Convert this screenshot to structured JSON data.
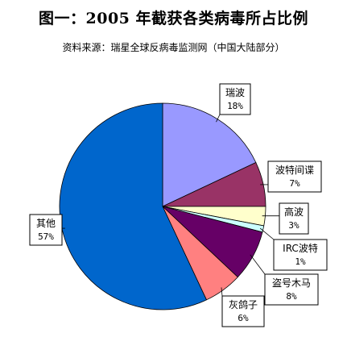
{
  "chart_data": {
    "type": "pie",
    "title": "图一：2005 年截获各类病毒所占比例",
    "subtitle": "资料来源：瑞星全球反病毒监测网（中国大陆部分）",
    "start_angle_deg": 0,
    "direction": "clockwise",
    "slices": [
      {
        "name": "瑞波",
        "value": 18,
        "value_label": "18%",
        "color": "#9999ff"
      },
      {
        "name": "波特间谍",
        "value": 7,
        "value_label": "7%",
        "color": "#993366"
      },
      {
        "name": "高波",
        "value": 3,
        "value_label": "3%",
        "color": "#ffffcc"
      },
      {
        "name": "IRC波特",
        "value": 1,
        "value_label": "1%",
        "color": "#ccffff"
      },
      {
        "name": "盗号木马",
        "value": 8,
        "value_label": "8%",
        "color": "#660066"
      },
      {
        "name": "灰鸽子",
        "value": 6,
        "value_label": "6%",
        "color": "#ff8080"
      },
      {
        "name": "其他",
        "value": 57,
        "value_label": "57%",
        "color": "#0066cc"
      }
    ]
  }
}
